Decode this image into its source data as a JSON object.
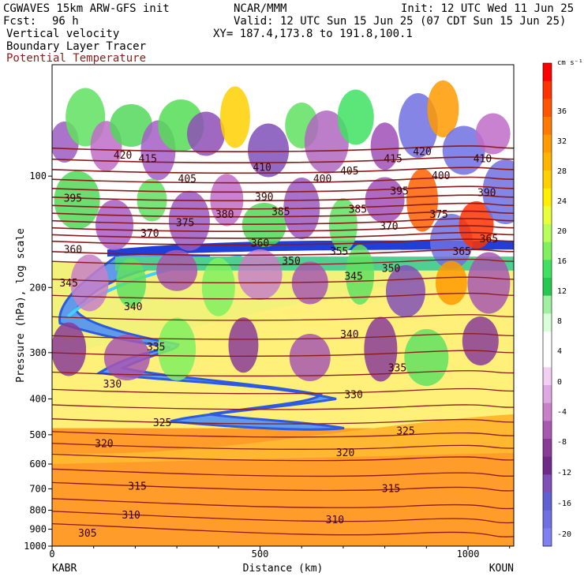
{
  "header": {
    "model": "CGWAVES 15km ARW-GFS init",
    "org": "NCAR/MMM",
    "init": "Init: 12 UTC Wed 11 Jun 25",
    "fcst_label": "Fcst:",
    "fcst_value": "96 h",
    "valid": "Valid: 12 UTC Sun 15 Jun 25 (07 CDT Sun 15 Jun 25)",
    "field1": "Vertical velocity",
    "xy": "XY= 187.4,173.8 to 191.8,100.1",
    "field2": "Boundary Layer Tracer",
    "field3": "Potential Temperature"
  },
  "colors": {
    "theta_contour": "#8b1a1a",
    "field3_text": "#8b1a1a"
  },
  "chart_data": {
    "type": "heatmap",
    "title": "Vertical velocity / Boundary Layer Tracer / Potential Temperature cross-section",
    "xlabel": "Distance (km)",
    "ylabel": "Pressure (hPa), log scale",
    "x_ticks": [
      0,
      500,
      1000
    ],
    "xlim": [
      0,
      1110
    ],
    "x_end_labels": {
      "left": "KABR",
      "right": "KOUN"
    },
    "y_ticks": [
      100,
      200,
      300,
      400,
      500,
      600,
      700,
      800,
      900,
      1000
    ],
    "ylim": [
      1000,
      50
    ],
    "y_scale": "log",
    "colorbar": {
      "unit": "cm s⁻¹",
      "tick_labels": [
        "36",
        "32",
        "28",
        "24",
        "20",
        "16",
        "12",
        "8",
        "4",
        "0",
        "-4",
        "-8",
        "-12",
        "-16",
        "-20"
      ],
      "colors": [
        "#ff0000",
        "#ff3300",
        "#ff5500",
        "#ff7a00",
        "#ff9a00",
        "#ffb400",
        "#ffd000",
        "#ffee00",
        "#e8ff3a",
        "#b8ff5a",
        "#80f060",
        "#40e060",
        "#28c850",
        "#a0f0a0",
        "#d8ffd8",
        "#ffffff",
        "#ffffff",
        "#f2d0f2",
        "#e0a8e0",
        "#c880c8",
        "#a858b0",
        "#883c98",
        "#702a88",
        "#8050b8",
        "#6060d0",
        "#7070e0",
        "#8080f0"
      ]
    },
    "theta_contour_labels": [
      {
        "value": "420",
        "x_km": 170,
        "p": 88
      },
      {
        "value": "415",
        "x_km": 230,
        "p": 90
      },
      {
        "value": "405",
        "x_km": 325,
        "p": 102
      },
      {
        "value": "410",
        "x_km": 505,
        "p": 95
      },
      {
        "value": "400",
        "x_km": 650,
        "p": 102
      },
      {
        "value": "405",
        "x_km": 715,
        "p": 97
      },
      {
        "value": "415",
        "x_km": 820,
        "p": 90
      },
      {
        "value": "420",
        "x_km": 890,
        "p": 86
      },
      {
        "value": "410",
        "x_km": 1035,
        "p": 90
      },
      {
        "value": "400",
        "x_km": 935,
        "p": 100
      },
      {
        "value": "395",
        "x_km": 50,
        "p": 115
      },
      {
        "value": "390",
        "x_km": 510,
        "p": 114
      },
      {
        "value": "385",
        "x_km": 550,
        "p": 125
      },
      {
        "value": "385",
        "x_km": 735,
        "p": 123
      },
      {
        "value": "395",
        "x_km": 835,
        "p": 110
      },
      {
        "value": "390",
        "x_km": 1045,
        "p": 111
      },
      {
        "value": "380",
        "x_km": 415,
        "p": 127
      },
      {
        "value": "375",
        "x_km": 320,
        "p": 134
      },
      {
        "value": "375",
        "x_km": 930,
        "p": 127
      },
      {
        "value": "370",
        "x_km": 235,
        "p": 143
      },
      {
        "value": "370",
        "x_km": 810,
        "p": 137
      },
      {
        "value": "360",
        "x_km": 50,
        "p": 158
      },
      {
        "value": "360",
        "x_km": 500,
        "p": 152
      },
      {
        "value": "355",
        "x_km": 690,
        "p": 160
      },
      {
        "value": "365",
        "x_km": 985,
        "p": 160
      },
      {
        "value": "365",
        "x_km": 1050,
        "p": 148
      },
      {
        "value": "350",
        "x_km": 575,
        "p": 170
      },
      {
        "value": "350",
        "x_km": 815,
        "p": 178
      },
      {
        "value": "345",
        "x_km": 40,
        "p": 195
      },
      {
        "value": "345",
        "x_km": 725,
        "p": 187
      },
      {
        "value": "340",
        "x_km": 195,
        "p": 226
      },
      {
        "value": "340",
        "x_km": 715,
        "p": 268
      },
      {
        "value": "335",
        "x_km": 250,
        "p": 290
      },
      {
        "value": "335",
        "x_km": 830,
        "p": 330
      },
      {
        "value": "330",
        "x_km": 145,
        "p": 365
      },
      {
        "value": "330",
        "x_km": 725,
        "p": 390
      },
      {
        "value": "325",
        "x_km": 265,
        "p": 465
      },
      {
        "value": "325",
        "x_km": 850,
        "p": 490
      },
      {
        "value": "320",
        "x_km": 125,
        "p": 530
      },
      {
        "value": "320",
        "x_km": 705,
        "p": 560
      },
      {
        "value": "315",
        "x_km": 205,
        "p": 690
      },
      {
        "value": "315",
        "x_km": 815,
        "p": 700
      },
      {
        "value": "310",
        "x_km": 190,
        "p": 825
      },
      {
        "value": "310",
        "x_km": 680,
        "p": 850
      },
      {
        "value": "305",
        "x_km": 85,
        "p": 925
      }
    ]
  }
}
